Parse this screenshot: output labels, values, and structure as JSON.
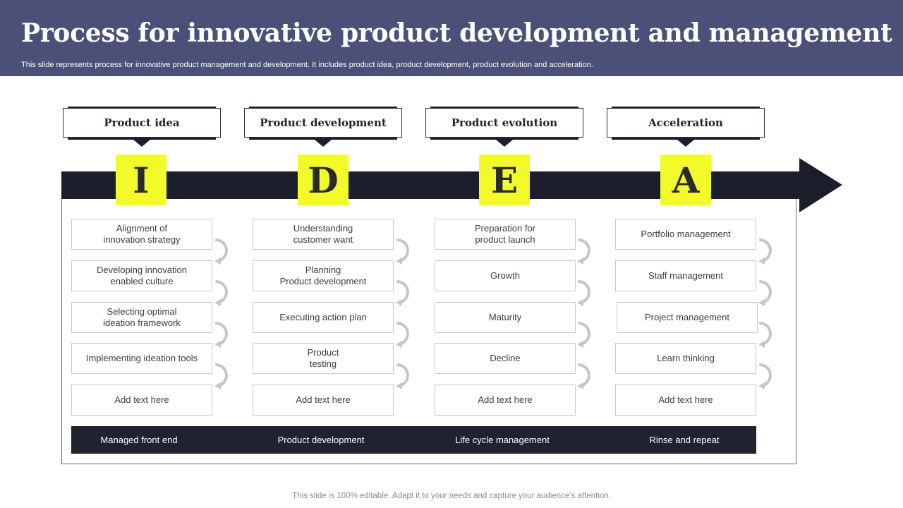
{
  "slide": {
    "title": "Process for innovative product development and management",
    "subtitle": "This slide represents process for innovative product management and development. It includes product idea, product development, product evolution and acceleration.",
    "footer": "This slide is 100% editable. Adapt it to your needs and capture your audience’s attention."
  },
  "colors": {
    "header": "#4b5078",
    "arrow": "#1c1f2b",
    "letter_highlight": "#f2fa2a",
    "bottom_bar": "#1f2230"
  },
  "stages": [
    {
      "label": "Product idea",
      "letter": "I",
      "steps": [
        "Alignment of\ninnovation  strategy",
        "Developing  innovation\nenabled culture",
        "Selecting optimal\nideation framework",
        "Implementing ideation tools",
        "Add text here"
      ],
      "footer_label": "Managed front end"
    },
    {
      "label": "Product development",
      "letter": "D",
      "steps": [
        "Understanding\ncustomer want",
        "Planning\nProduct development",
        "Executing action plan",
        "Product\ntesting",
        "Add text here"
      ],
      "footer_label": "Product development"
    },
    {
      "label": "Product evolution",
      "letter": "E",
      "steps": [
        "Preparation for\nproduct launch",
        "Growth",
        "Maturity",
        "Decline",
        "Add text here"
      ],
      "footer_label": "Life cycle management"
    },
    {
      "label": "Acceleration",
      "letter": "A",
      "steps": [
        "Portfolio management",
        "Staff management",
        "Project management",
        "Learn thinking",
        "Add text here"
      ],
      "footer_label": "Rinse and repeat"
    }
  ]
}
